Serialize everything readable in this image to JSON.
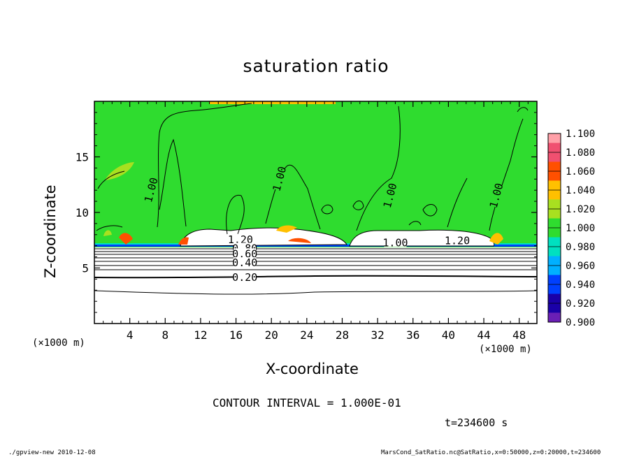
{
  "chart_data": {
    "type": "heatmap",
    "title": "saturation ratio",
    "xlabel": "X-coordinate",
    "ylabel": "Z-coordinate",
    "x_unit_left": "(×1000 m)",
    "x_unit_right": "(×1000 m)",
    "xlim": [
      0,
      50
    ],
    "ylim": [
      0,
      20
    ],
    "x_ticks": [
      4,
      8,
      12,
      16,
      20,
      24,
      28,
      32,
      36,
      40,
      44,
      48
    ],
    "y_ticks": [
      5,
      10,
      15
    ],
    "colorbar": {
      "levels": [
        "0.900",
        "0.920",
        "0.940",
        "0.960",
        "0.980",
        "1.000",
        "1.020",
        "1.040",
        "1.060",
        "1.080",
        "1.100"
      ],
      "colors": [
        "#6a1fb5",
        "#1a00a8",
        "#0040ff",
        "#00b0ff",
        "#00e0c0",
        "#2fdc2f",
        "#a8e020",
        "#ffc000",
        "#ff5000",
        "#f05070",
        "#ffa0a8"
      ]
    },
    "fields": {
      "saturated_color": "#2fdc2f",
      "subsaturated_color": "#ffffff"
    },
    "contour_labels": [
      {
        "text": "1.00",
        "x": 6.5,
        "z": 12.0
      },
      {
        "text": "1.00",
        "x": 21.0,
        "z": 13.0
      },
      {
        "text": "1.00",
        "x": 33.5,
        "z": 11.5
      },
      {
        "text": "1.00",
        "x": 45.5,
        "z": 11.5
      },
      {
        "text": "1.20",
        "x": 16.5,
        "z": 7.5
      },
      {
        "text": "1.20",
        "x": 41.0,
        "z": 7.4
      },
      {
        "text": "1.00",
        "x": 34.0,
        "z": 7.2
      },
      {
        "text": "0.80",
        "x": 17.0,
        "z": 6.7
      },
      {
        "text": "0.60",
        "x": 17.0,
        "z": 6.2
      },
      {
        "text": "0.40",
        "x": 17.0,
        "z": 5.4
      },
      {
        "text": "0.20",
        "x": 17.0,
        "z": 4.1
      }
    ],
    "contour_interval": "CONTOUR INTERVAL = 1.000E-01",
    "time": "t=234600 s"
  },
  "footer": {
    "left": "./gpview-new  2010-12-08",
    "right": "MarsCond_SatRatio.nc@SatRatio,x=0:50000,z=0:20000,t=234600"
  }
}
